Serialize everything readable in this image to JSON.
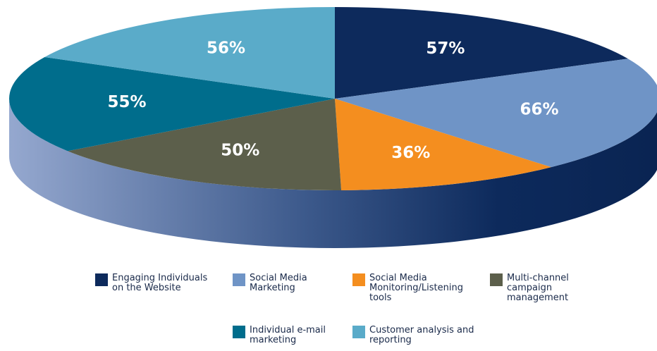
{
  "chart_data": {
    "type": "pie",
    "categories": [
      "Engaging Individuals on the Website",
      "Social Media Marketing",
      "Social Media Monitoring/Listening tools",
      "Multi-channel campaign management",
      "Individual e-mail marketing",
      "Customer analysis and reporting"
    ],
    "values": [
      57,
      66,
      36,
      50,
      55,
      56
    ],
    "value_labels": [
      "57%",
      "66%",
      "36%",
      "50%",
      "55%",
      "56%"
    ],
    "colors": [
      "#0d2a5c",
      "#6f94c6",
      "#f48e1f",
      "#5c5f4b",
      "#006d8c",
      "#5aabc9"
    ],
    "legend": "bottom"
  }
}
